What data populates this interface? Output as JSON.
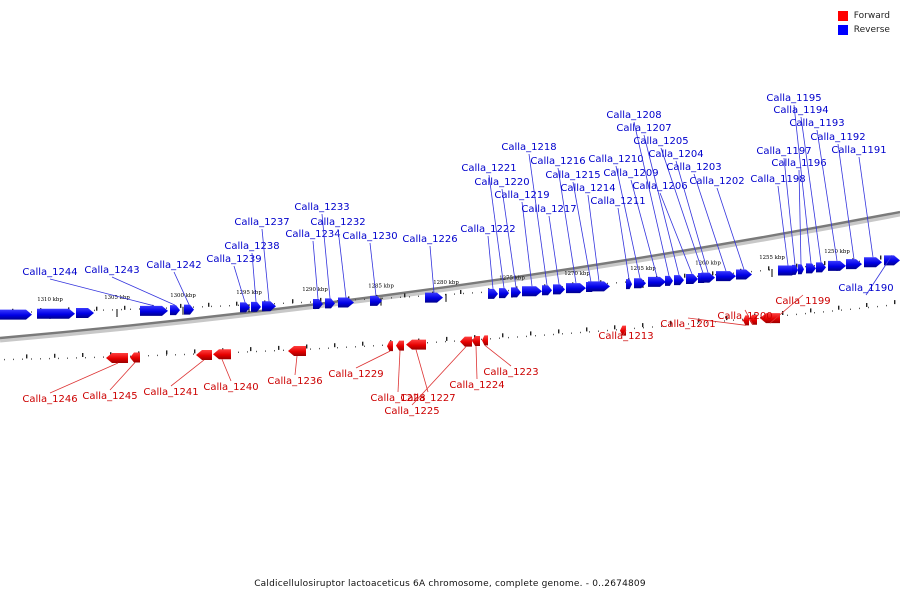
{
  "legend": [
    {
      "label": "Forward",
      "color": "#ff0000"
    },
    {
      "label": "Reverse",
      "color": "#0000ff"
    }
  ],
  "caption": "Caldicellulosiruptor lactoaceticus 6A chromosome, complete genome. - 0..2674809",
  "ticks": [
    "1310 kbp",
    "1305 kbp",
    "1300 kbp",
    "1295 kbp",
    "1290 kbp",
    "1285 kbp",
    "1280 kbp",
    "1275 kbp",
    "1270 kbp",
    "1265 kbp",
    "1260 kbp",
    "1255 kbp",
    "1250 kbp"
  ],
  "reverse_genes": [
    "Calla_1244",
    "Calla_1243",
    "Calla_1242",
    "Calla_1239",
    "Calla_1238",
    "Calla_1237",
    "Calla_1234",
    "Calla_1233",
    "Calla_1232",
    "Calla_1230",
    "Calla_1226",
    "Calla_1222",
    "Calla_1221",
    "Calla_1220",
    "Calla_1219",
    "Calla_1218",
    "Calla_1217",
    "Calla_1216",
    "Calla_1215",
    "Calla_1214",
    "Calla_1211",
    "Calla_1210",
    "Calla_1209",
    "Calla_1208",
    "Calla_1207",
    "Calla_1206",
    "Calla_1205",
    "Calla_1204",
    "Calla_1203",
    "Calla_1202",
    "Calla_1198",
    "Calla_1197",
    "Calla_1196",
    "Calla_1195",
    "Calla_1194",
    "Calla_1193",
    "Calla_1192",
    "Calla_1191",
    "Calla_1190"
  ],
  "forward_genes": [
    "Calla_1246",
    "Calla_1245",
    "Calla_1241",
    "Calla_1240",
    "Calla_1236",
    "Calla_1229",
    "Calla_1228",
    "Calla_1227",
    "Calla_1225",
    "Calla_1224",
    "Calla_1223",
    "Calla_1213",
    "Calla_1201",
    "Calla_1200",
    "Calla_1199"
  ]
}
